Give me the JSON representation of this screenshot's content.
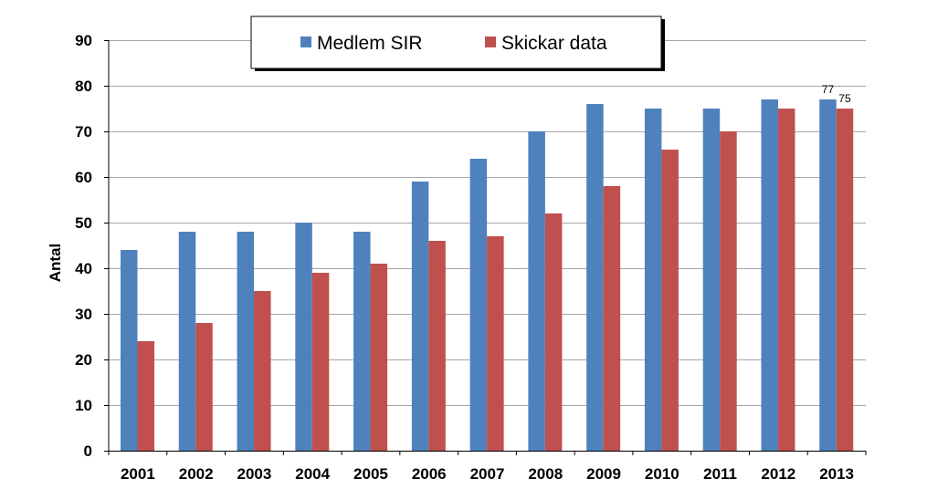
{
  "chart_data": {
    "type": "bar",
    "ylabel": "Antal",
    "xlabel": "",
    "ylim": [
      0,
      90
    ],
    "yticks": [
      0,
      10,
      20,
      30,
      40,
      50,
      60,
      70,
      80,
      90
    ],
    "grid": true,
    "legend_position": "top-center",
    "categories": [
      "2001",
      "2002",
      "2003",
      "2004",
      "2005",
      "2006",
      "2007",
      "2008",
      "2009",
      "2010",
      "2011",
      "2012",
      "2013"
    ],
    "series": [
      {
        "name": "Medlem SIR",
        "color": "#4f81bd",
        "values": [
          44,
          48,
          48,
          50,
          48,
          59,
          64,
          70,
          76,
          75,
          75,
          77,
          77
        ]
      },
      {
        "name": "Skickar data",
        "color": "#c0504d",
        "values": [
          24,
          28,
          35,
          39,
          41,
          46,
          47,
          52,
          58,
          66,
          70,
          75,
          75
        ]
      }
    ],
    "data_labels": [
      {
        "series": 0,
        "category": "2013",
        "text": "77"
      },
      {
        "series": 1,
        "category": "2013",
        "text": "75"
      }
    ]
  }
}
